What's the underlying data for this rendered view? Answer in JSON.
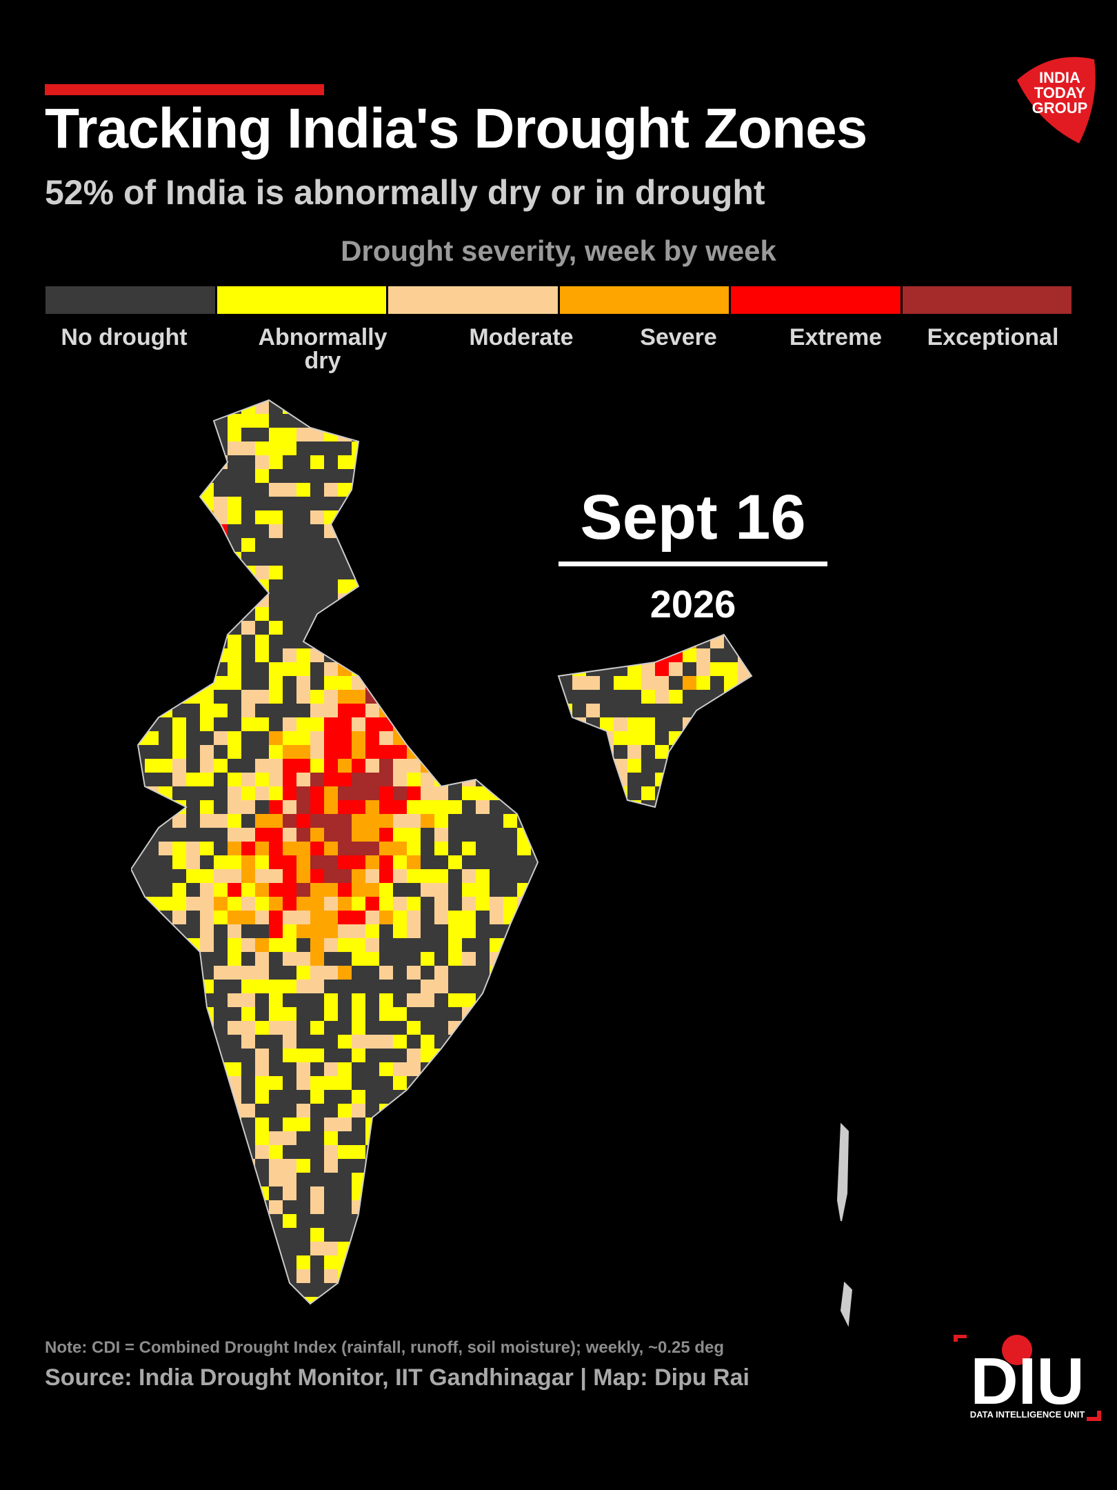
{
  "header": {
    "title": "Tracking India's Drought Zones",
    "subtitle": "52% of India is abnormally dry or in drought"
  },
  "legend": {
    "title": "Drought severity, week by week",
    "categories": [
      {
        "label": "No drought",
        "color": "#3a3a3a"
      },
      {
        "label": "Abnormally dry",
        "color": "#ffff00"
      },
      {
        "label": "Moderate",
        "color": "#fcd095"
      },
      {
        "label": "Severe",
        "color": "#ffa500"
      },
      {
        "label": "Extreme",
        "color": "#ff0000"
      },
      {
        "label": "Exceptional",
        "color": "#a52a2a"
      }
    ]
  },
  "date": {
    "day": "Sept 16",
    "year": "2026"
  },
  "map": {
    "region": "India",
    "boundary_color": "#cccccc"
  },
  "footer": {
    "note": "Note: CDI = Combined Drought Index (rainfall, runoff, soil moisture); weekly, ~0.25 deg",
    "source": "Source: India Drought Monitor, IIT Gandhinagar | Map: Dipu Rai"
  },
  "logos": {
    "publisher": "INDIA TODAY GROUP",
    "unit_mark": "DIU",
    "unit_name": "DATA INTELLIGENCE UNIT"
  }
}
